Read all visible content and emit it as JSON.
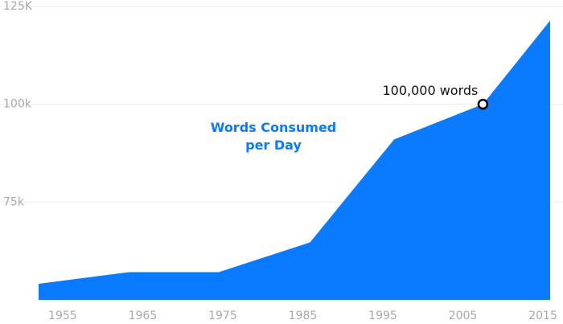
{
  "chart_data": {
    "type": "area",
    "x": [
      1952,
      1963.3,
      1974.5,
      1985.9,
      1996.4,
      2007.5,
      2015.9
    ],
    "series": [
      {
        "name": "Words Consumed per Day",
        "color": "#0a7bff",
        "values": [
          54100,
          57100,
          57100,
          64700,
          91000,
          100000,
          121400
        ]
      }
    ],
    "xlim": [
      1952,
      2016
    ],
    "xticks": [
      1955,
      1965,
      1975,
      1985,
      1995,
      2005,
      2015
    ],
    "ylim": [
      50000,
      125000
    ],
    "yticks": [
      {
        "value": 75000,
        "label": "75k"
      },
      {
        "value": 100000,
        "label": "100k"
      },
      {
        "value": 125000,
        "label": "125K"
      }
    ],
    "grid": true,
    "annotation": {
      "text": "100,000 words",
      "x": 2007.5,
      "y": 100000
    }
  }
}
